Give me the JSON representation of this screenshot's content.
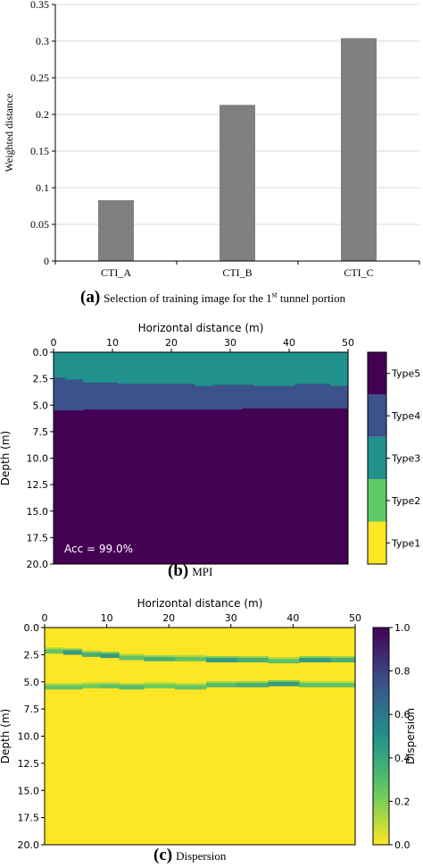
{
  "chart_data": [
    {
      "type": "bar",
      "categories": [
        "CTI_A",
        "CTI_B",
        "CTI_C"
      ],
      "values": [
        0.083,
        0.213,
        0.304
      ],
      "ylabel": "Weighted distance",
      "ylim": [
        0,
        0.35
      ],
      "yticks": [
        "0",
        "0.05",
        "0.1",
        "0.15",
        "0.2",
        "0.25",
        "0.3",
        "0.35"
      ],
      "grid": true,
      "bar_color": "#808080",
      "caption_letter": "(a)",
      "caption_text": "Selection of training image for the 1",
      "caption_sup": "st",
      "caption_text_end": " tunnel portion"
    },
    {
      "type": "heatmap",
      "xlabel": "Horizontal distance (m)",
      "ylabel": "Depth (m)",
      "xlim": [
        0,
        50
      ],
      "ylim": [
        0,
        20
      ],
      "xticks": [
        "0",
        "10",
        "20",
        "30",
        "40",
        "50"
      ],
      "yticks": [
        "0.0",
        "2.5",
        "5.0",
        "7.5",
        "10.0",
        "12.5",
        "15.0",
        "17.5",
        "20.0"
      ],
      "x_breaks": [
        0,
        2,
        5,
        11,
        24,
        27,
        32,
        34,
        41,
        47,
        50
      ],
      "boundary_type3_type4": [
        2.4,
        2.6,
        2.9,
        3.0,
        3.2,
        3.1,
        3.1,
        3.2,
        3.0,
        3.2
      ],
      "boundary_type4_type5": [
        5.5,
        5.5,
        5.4,
        5.4,
        5.4,
        5.4,
        5.3,
        5.3,
        5.3,
        5.3
      ],
      "annotation": "Acc = 99.0%",
      "legend": [
        "Type5",
        "Type4",
        "Type3",
        "Type2",
        "Type1"
      ],
      "legend_colors": [
        "#440154",
        "#3b528b",
        "#21918c",
        "#5ec962",
        "#fde725"
      ],
      "caption_letter": "(b)",
      "caption_text": "MPI"
    },
    {
      "type": "heatmap",
      "xlabel": "Horizontal distance (m)",
      "ylabel": "Depth (m)",
      "xlim": [
        0,
        50
      ],
      "ylim": [
        0,
        20
      ],
      "xticks": [
        "0",
        "10",
        "20",
        "30",
        "40",
        "50"
      ],
      "yticks": [
        "0.0",
        "2.5",
        "5.0",
        "7.5",
        "10.0",
        "12.5",
        "15.0",
        "17.5",
        "20.0"
      ],
      "background_value": 0.0,
      "band_upper_x": [
        0,
        3,
        6,
        9,
        12,
        16,
        21,
        26,
        31,
        36,
        41,
        46,
        50
      ],
      "band_upper_depth": [
        2.2,
        2.3,
        2.5,
        2.6,
        2.8,
        2.9,
        2.9,
        3.0,
        3.0,
        3.1,
        3.0,
        3.0,
        3.1
      ],
      "band_upper_value": [
        0.3,
        0.5,
        0.4,
        0.5,
        0.3,
        0.4,
        0.3,
        0.5,
        0.4,
        0.3,
        0.5,
        0.4,
        0.3
      ],
      "band_lower_x": [
        0,
        3,
        6,
        9,
        12,
        16,
        21,
        26,
        31,
        36,
        41,
        46,
        50
      ],
      "band_lower_depth": [
        5.5,
        5.5,
        5.4,
        5.4,
        5.5,
        5.4,
        5.5,
        5.3,
        5.3,
        5.2,
        5.3,
        5.3,
        5.3
      ],
      "band_lower_value": [
        0.3,
        0.3,
        0.25,
        0.3,
        0.35,
        0.25,
        0.3,
        0.35,
        0.4,
        0.5,
        0.3,
        0.3,
        0.25
      ],
      "colorbar_label": "Dispersion",
      "colorbar_ticks": [
        "0.0",
        "0.2",
        "0.4",
        "0.6",
        "0.8",
        "1.0"
      ],
      "caption_letter": "(c)",
      "caption_text": "Dispersion"
    }
  ]
}
